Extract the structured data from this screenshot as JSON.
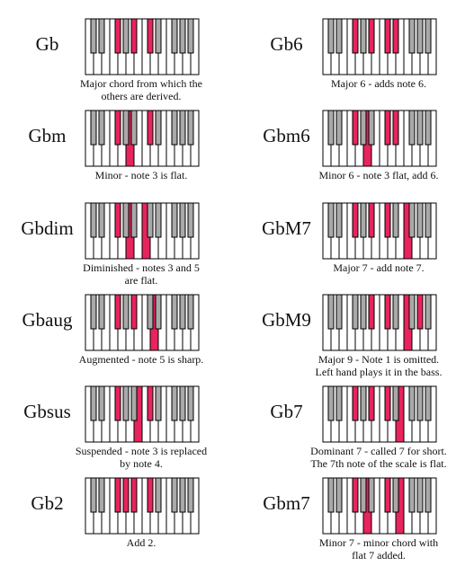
{
  "colors": {
    "highlight": "#e8245d",
    "black_key": "#a9a9a9",
    "white_key": "#ffffff",
    "outline": "#000000"
  },
  "chords": [
    {
      "name": "Gb",
      "caption": [
        "Major chord from which the",
        "others are derived."
      ],
      "notes": [
        6,
        10,
        13
      ]
    },
    {
      "name": "Gb6",
      "caption": [
        "Major 6 - adds note 6."
      ],
      "notes": [
        6,
        10,
        13,
        15
      ]
    },
    {
      "name": "Gbm",
      "caption": [
        "Minor - note 3 is flat."
      ],
      "notes": [
        6,
        9,
        13
      ]
    },
    {
      "name": "Gbm6",
      "caption": [
        "Minor 6 - note 3 flat, add 6."
      ],
      "notes": [
        6,
        9,
        13,
        15
      ]
    },
    {
      "name": "Gbdim",
      "caption": [
        "Diminished - notes 3 and 5",
        "are flat."
      ],
      "notes": [
        6,
        9,
        12
      ]
    },
    {
      "name": "GbM7",
      "caption": [
        "Major 7 - add note 7."
      ],
      "notes": [
        6,
        10,
        13,
        17
      ]
    },
    {
      "name": "Gbaug",
      "caption": [
        "Augmented - note 5 is sharp."
      ],
      "notes": [
        6,
        10,
        14
      ]
    },
    {
      "name": "GbM9",
      "caption": [
        "Major 9 - Note 1 is omitted.",
        "Left hand plays it in the bass."
      ],
      "notes": [
        10,
        13,
        17,
        20
      ]
    },
    {
      "name": "Gbsus",
      "caption": [
        "Suspended - note 3 is replaced",
        "by note 4."
      ],
      "notes": [
        6,
        11,
        13
      ]
    },
    {
      "name": "Gb7",
      "caption": [
        "Dominant 7 - called 7 for short.",
        "The 7th note of the scale is flat."
      ],
      "notes": [
        6,
        10,
        13,
        16
      ]
    },
    {
      "name": "Gb2",
      "caption": [
        "Add 2."
      ],
      "notes": [
        6,
        8,
        10,
        13
      ]
    },
    {
      "name": "Gbm7",
      "caption": [
        "Minor 7 - minor chord with",
        "flat 7 added."
      ],
      "notes": [
        6,
        9,
        13,
        16
      ]
    }
  ]
}
